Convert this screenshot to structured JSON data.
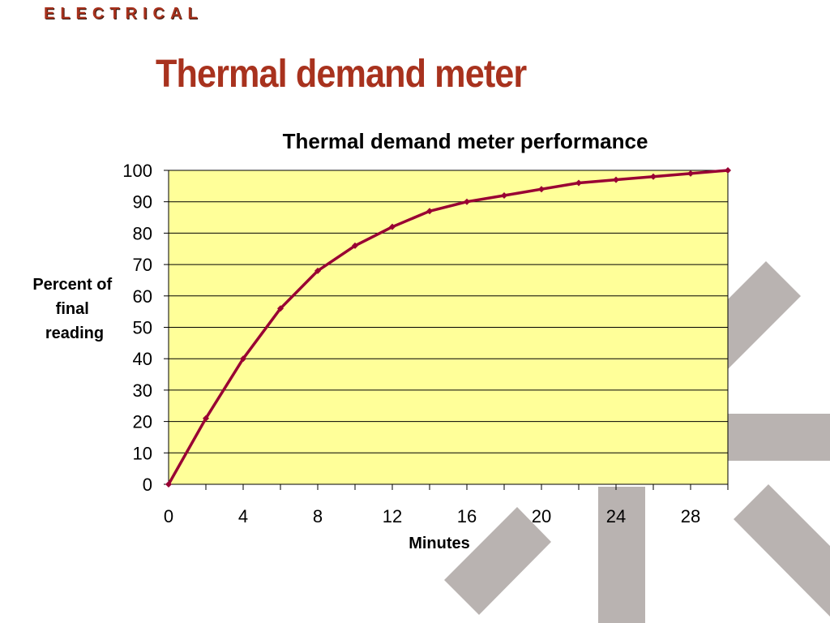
{
  "header": {
    "brand": "ELECTRICAL",
    "slide_title": "Thermal demand meter"
  },
  "colors": {
    "brand": "#a8321e",
    "plot_background": "#ffff99",
    "series_line": "#990033",
    "watermark": "#b9b3b1"
  },
  "chart_data": {
    "type": "line",
    "title": "Thermal demand meter performance",
    "xlabel": "Minutes",
    "ylabel_lines": [
      "Percent of",
      "final",
      "reading"
    ],
    "xlim": [
      0,
      30
    ],
    "ylim": [
      0,
      100
    ],
    "x_ticks": [
      0,
      4,
      8,
      12,
      16,
      20,
      24,
      28
    ],
    "y_ticks": [
      0,
      10,
      20,
      30,
      40,
      50,
      60,
      70,
      80,
      90,
      100
    ],
    "grid": "horizontal",
    "legend": "none",
    "series": [
      {
        "x": [
          0,
          2,
          4,
          6,
          8,
          10,
          12,
          14,
          16,
          18,
          20,
          22,
          24,
          26,
          28,
          30
        ],
        "values": [
          0,
          21,
          40,
          56,
          68,
          76,
          82,
          87,
          90,
          92,
          94,
          96,
          97,
          98,
          99,
          100
        ]
      }
    ]
  }
}
